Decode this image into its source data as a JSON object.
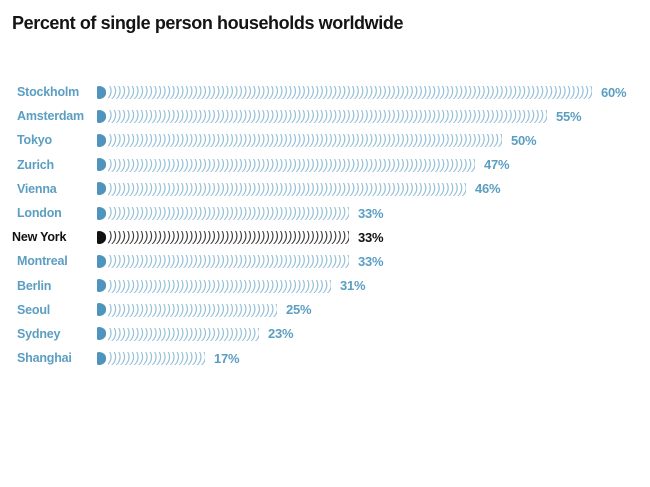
{
  "chart_data": {
    "type": "bar",
    "orientation": "horizontal",
    "title": "Percent of single person households worldwide",
    "categories": [
      "Stockholm",
      "Amsterdam",
      "Tokyo",
      "Zurich",
      "Vienna",
      "London",
      "New York",
      "Montreal",
      "Berlin",
      "Seoul",
      "Sydney",
      "Shanghai"
    ],
    "values": [
      60,
      55,
      50,
      47,
      46,
      33,
      33,
      33,
      31,
      25,
      23,
      17
    ],
    "value_labels": [
      "60%",
      "55%",
      "50%",
      "47%",
      "46%",
      "33%",
      "33%",
      "33%",
      "31%",
      "25%",
      "23%",
      "17%"
    ],
    "unit": "%",
    "xlim": [
      0,
      60
    ],
    "grid": false,
    "legend": false,
    "highlight_category": "New York",
    "bar_style": "repeated right-parenthesis strokes with solid D-shaped cap at bar start",
    "colors": {
      "label_blue": "#5B9EC2",
      "bar_cap_blue": "#4E94BC",
      "bar_glyph_blue": "#93BFD8",
      "highlight_black": "#111111",
      "title_black": "#141414",
      "background": "#ffffff"
    }
  }
}
